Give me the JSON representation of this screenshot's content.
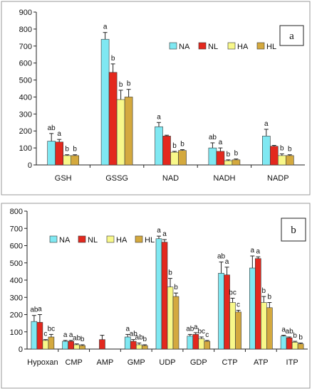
{
  "chart_data": [
    {
      "type": "bar",
      "panel_label": "a",
      "categories": [
        "GSH",
        "GSSG",
        "NAD",
        "NADH",
        "NADP"
      ],
      "ylim": [
        0,
        900
      ],
      "yticks": [
        0,
        100,
        200,
        300,
        400,
        500,
        600,
        700,
        800,
        900
      ],
      "legend_placement": "top",
      "grid": false,
      "series": [
        {
          "name": "NA",
          "color": "#7fe8f2",
          "values": [
            140,
            740,
            225,
            100,
            170
          ],
          "errors": [
            45,
            40,
            25,
            30,
            40
          ],
          "letters": [
            "ab",
            "a",
            "a",
            "ab",
            "a"
          ]
        },
        {
          "name": "NL",
          "color": "#e3281e",
          "values": [
            135,
            545,
            170,
            80,
            110
          ],
          "errors": [
            15,
            50,
            5,
            20,
            5
          ],
          "letters": [
            "a",
            "b",
            "",
            "a",
            ""
          ]
        },
        {
          "name": "HA",
          "color": "#f8f88a",
          "values": [
            55,
            385,
            75,
            25,
            55
          ],
          "errors": [
            5,
            55,
            5,
            5,
            10
          ],
          "letters": [
            "b",
            "b",
            "b",
            "b",
            "b"
          ]
        },
        {
          "name": "HL",
          "color": "#d4a93e",
          "values": [
            55,
            400,
            85,
            30,
            55
          ],
          "errors": [
            5,
            45,
            5,
            5,
            5
          ],
          "letters": [
            "b",
            "b",
            "b",
            "b",
            "b"
          ]
        }
      ]
    },
    {
      "type": "bar",
      "panel_label": "b",
      "categories": [
        "Hypoxan",
        "CMP",
        "AMP",
        "GMP",
        "UDP",
        "GDP",
        "CTP",
        "ATP",
        "ITP"
      ],
      "ylim": [
        0,
        800
      ],
      "yticks": [
        0,
        100,
        200,
        300,
        400,
        500,
        600,
        700,
        800
      ],
      "legend_placement": "top",
      "grid": false,
      "series": [
        {
          "name": "NA",
          "color": "#7fe8f2",
          "values": [
            160,
            45,
            0,
            70,
            640,
            75,
            440,
            470,
            75
          ],
          "errors": [
            35,
            5,
            0,
            15,
            15,
            10,
            65,
            70,
            5
          ],
          "letters": [
            "ab",
            "a",
            "",
            "a",
            "a",
            "ab",
            "ab",
            "a",
            "a"
          ]
        },
        {
          "name": "NL",
          "color": "#e3281e",
          "values": [
            155,
            45,
            55,
            45,
            620,
            85,
            430,
            525,
            65
          ],
          "errors": [
            45,
            5,
            25,
            10,
            15,
            10,
            45,
            10,
            5
          ],
          "letters": [
            "a",
            "a",
            "",
            "ab",
            "a",
            "a",
            "a",
            "a",
            "ab"
          ]
        },
        {
          "name": "HA",
          "color": "#f8f88a",
          "values": [
            50,
            25,
            0,
            25,
            360,
            60,
            270,
            270,
            40
          ],
          "errors": [
            5,
            5,
            0,
            10,
            50,
            10,
            25,
            35,
            5
          ],
          "letters": [
            "c",
            "ab",
            "",
            "ab",
            "b",
            "bc",
            "bc",
            "b",
            "b"
          ]
        },
        {
          "name": "HL",
          "color": "#d4a93e",
          "values": [
            70,
            20,
            0,
            20,
            305,
            45,
            215,
            240,
            30
          ],
          "errors": [
            15,
            5,
            0,
            5,
            20,
            5,
            10,
            30,
            5
          ],
          "letters": [
            "bc",
            "b",
            "",
            "b",
            "b",
            "c",
            "c",
            "b",
            "b"
          ]
        }
      ]
    }
  ]
}
